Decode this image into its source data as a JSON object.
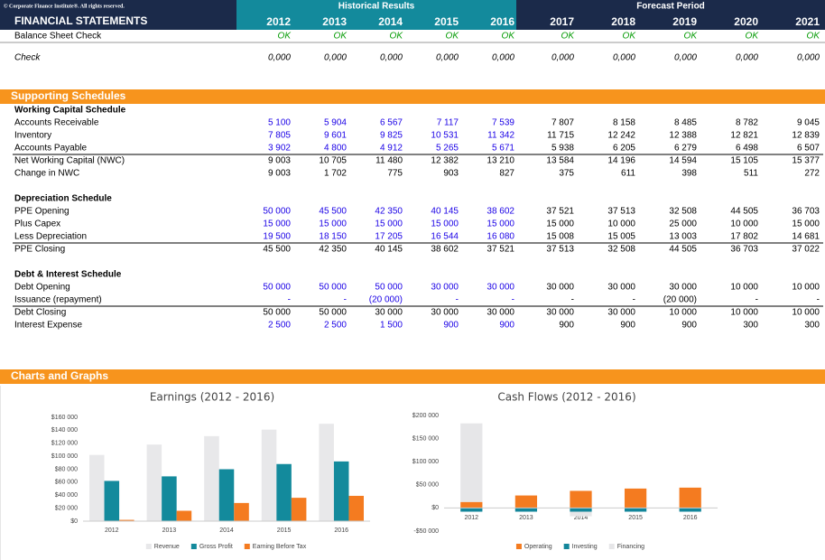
{
  "header": {
    "copyright": "© Corporate Finance Institute®. All rights reserved.",
    "title": "FINANCIAL STATEMENTS",
    "historical": "Historical Results",
    "forecast": "Forecast Period",
    "years": [
      "2012",
      "2013",
      "2014",
      "2015",
      "2016",
      "2017",
      "2018",
      "2019",
      "2020",
      "2021"
    ]
  },
  "checks": [
    {
      "label": "Balance Sheet Check",
      "values": [
        "OK",
        "OK",
        "OK",
        "OK",
        "OK",
        "OK",
        "OK",
        "OK",
        "OK",
        "OK"
      ],
      "color": "#009a00"
    },
    {
      "label": "Check",
      "values": [
        "0,000",
        "0,000",
        "0,000",
        "0,000",
        "0,000",
        "0,000",
        "0,000",
        "0,000",
        "0,000",
        "0,000"
      ],
      "color": "#000000"
    }
  ],
  "supporting": {
    "title": "Supporting Schedules",
    "input_color": "#1a00e6",
    "schedules": [
      {
        "title": "Working Capital Schedule",
        "rows": [
          {
            "label": "Accounts Receivable",
            "values": [
              "5 100",
              "5 904",
              "6 567",
              "7 117",
              "7 539",
              "7 807",
              "8 158",
              "8 485",
              "8 782",
              "9 045"
            ],
            "input": true
          },
          {
            "label": "Inventory",
            "values": [
              "7 805",
              "9 601",
              "9 825",
              "10 531",
              "11 342",
              "11 715",
              "12 242",
              "12 388",
              "12 821",
              "12 839"
            ],
            "input": true
          },
          {
            "label": "Accounts Payable",
            "values": [
              "3 902",
              "4 800",
              "4 912",
              "5 265",
              "5 671",
              "5 938",
              "6 205",
              "6 279",
              "6 498",
              "6 507"
            ],
            "input": true
          },
          {
            "label": "Net Working Capital (NWC)",
            "values": [
              "9 003",
              "10 705",
              "11 480",
              "12 382",
              "13 210",
              "13 584",
              "14 196",
              "14 594",
              "15 105",
              "15 377"
            ],
            "input": false,
            "rule_above": true
          },
          {
            "label": "Change in NWC",
            "values": [
              "9 003",
              "1 702",
              "775",
              "903",
              "827",
              "375",
              "611",
              "398",
              "511",
              "272"
            ],
            "input": false
          }
        ]
      },
      {
        "title": "Depreciation Schedule",
        "rows": [
          {
            "label": "PPE Opening",
            "values": [
              "50 000",
              "45 500",
              "42 350",
              "40 145",
              "38 602",
              "37 521",
              "37 513",
              "32 508",
              "44 505",
              "36 703"
            ],
            "input": true
          },
          {
            "label": "Plus Capex",
            "values": [
              "15 000",
              "15 000",
              "15 000",
              "15 000",
              "15 000",
              "15 000",
              "10 000",
              "25 000",
              "10 000",
              "15 000"
            ],
            "input": true
          },
          {
            "label": "Less Depreciation",
            "values": [
              "19 500",
              "18 150",
              "17 205",
              "16 544",
              "16 080",
              "15 008",
              "15 005",
              "13 003",
              "17 802",
              "14 681"
            ],
            "input": true
          },
          {
            "label": "PPE Closing",
            "values": [
              "45 500",
              "42 350",
              "40 145",
              "38 602",
              "37 521",
              "37 513",
              "32 508",
              "44 505",
              "36 703",
              "37 022"
            ],
            "input": false,
            "rule_above": true
          }
        ]
      },
      {
        "title": "Debt & Interest Schedule",
        "rows": [
          {
            "label": "Debt Opening",
            "values": [
              "50 000",
              "50 000",
              "50 000",
              "30 000",
              "30 000",
              "30 000",
              "30 000",
              "30 000",
              "10 000",
              "10 000"
            ],
            "input": true
          },
          {
            "label": "Issuance (repayment)",
            "values": [
              "-",
              "-",
              "(20 000)",
              "-",
              "-",
              "-",
              "-",
              "(20 000)",
              "-",
              "-"
            ],
            "input": true
          },
          {
            "label": "Debt Closing",
            "values": [
              "50 000",
              "50 000",
              "30 000",
              "30 000",
              "30 000",
              "30 000",
              "30 000",
              "10 000",
              "10 000",
              "10 000"
            ],
            "input": false,
            "rule_above": true
          },
          {
            "label": "Interest Expense",
            "values": [
              "2 500",
              "2 500",
              "1 500",
              "900",
              "900",
              "900",
              "900",
              "900",
              "300",
              "300"
            ],
            "input": true
          }
        ]
      }
    ]
  },
  "charts_section": {
    "title": "Charts and Graphs"
  },
  "chart_data": [
    {
      "type": "bar",
      "title": "Earnings (2012 - 2016)",
      "categories": [
        "2012",
        "2013",
        "2014",
        "2015",
        "2016"
      ],
      "series": [
        {
          "name": "Revenue",
          "color": "#e8e8ea",
          "values": [
            102000,
            118000,
            131000,
            141000,
            150000
          ]
        },
        {
          "name": "Gross Profit",
          "color": "#138a9c",
          "values": [
            62000,
            69000,
            80000,
            88000,
            92000
          ]
        },
        {
          "name": "Earning Before Tax",
          "color": "#f47b20",
          "values": [
            2000,
            16000,
            28000,
            36000,
            39000
          ]
        }
      ],
      "ylim": [
        0,
        160000
      ],
      "yticks": [
        {
          "value": 0,
          "label": "$0"
        },
        {
          "value": 20000,
          "label": "$20 000"
        },
        {
          "value": 40000,
          "label": "$40 000"
        },
        {
          "value": 60000,
          "label": "$60 000"
        },
        {
          "value": 80000,
          "label": "$80 000"
        },
        {
          "value": 100000,
          "label": "$100 000"
        },
        {
          "value": 120000,
          "label": "$120 000"
        },
        {
          "value": 140000,
          "label": "$140 000"
        },
        {
          "value": 160000,
          "label": "$160 000"
        }
      ],
      "grid": false,
      "legend": "bottom"
    },
    {
      "type": "stacked_bar",
      "title": "Cash Flows (2012 - 2016)",
      "categories": [
        "2012",
        "2013",
        "2014",
        "2015",
        "2016"
      ],
      "series": [
        {
          "name": "Operating",
          "color": "#f47b20",
          "values": [
            13000,
            27000,
            37000,
            42000,
            44000
          ]
        },
        {
          "name": "Investing",
          "color": "#13869a",
          "values": [
            -8000,
            -8000,
            -8000,
            -8000,
            -8000
          ]
        },
        {
          "name": "Financing",
          "color": "#e6e6e8",
          "values": [
            170000,
            0,
            -10000,
            0,
            0
          ]
        }
      ],
      "ylim": [
        -50000,
        200000
      ],
      "yticks": [
        {
          "value": -50000,
          "label": "-$50 000"
        },
        {
          "value": 0,
          "label": "$0"
        },
        {
          "value": 50000,
          "label": "$50 000"
        },
        {
          "value": 100000,
          "label": "$100 000"
        },
        {
          "value": 150000,
          "label": "$150 000"
        },
        {
          "value": 200000,
          "label": "$200 000"
        }
      ],
      "grid": false,
      "legend": "bottom"
    }
  ]
}
